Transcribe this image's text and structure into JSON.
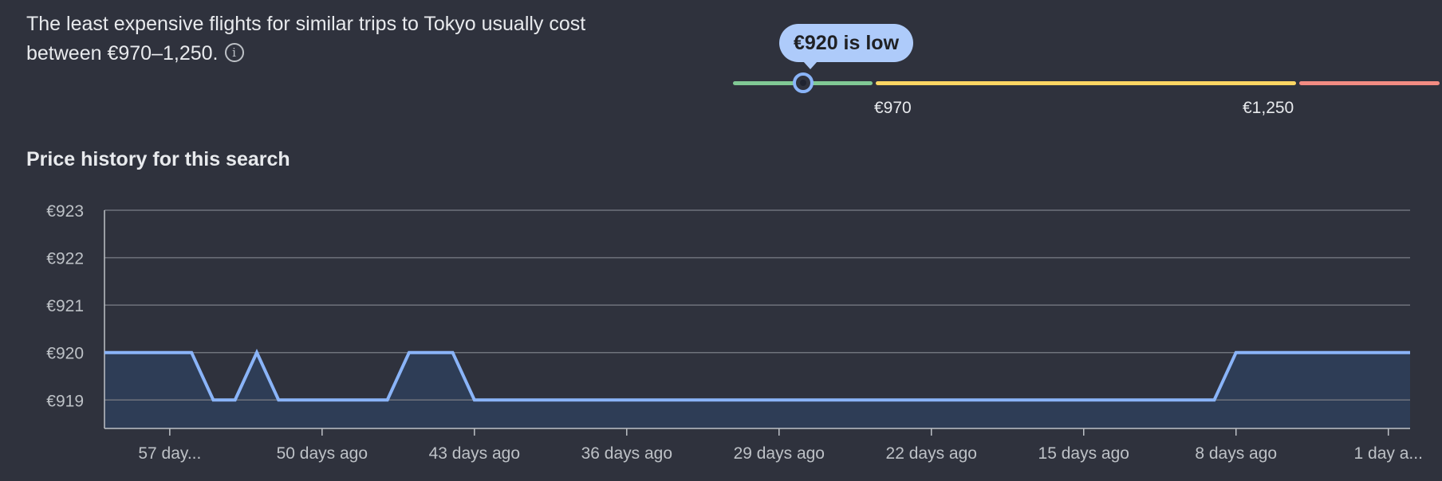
{
  "summary": {
    "text": "The least expensive flights for similar trips to Tokyo usually cost between €970–1,250.",
    "info_icon": "info-icon"
  },
  "price_range": {
    "bubble": "€920 is low",
    "low_threshold_label": "€970",
    "high_threshold_label": "€1,250",
    "colors": {
      "low": "#81c995",
      "typical": "#fdd663",
      "high": "#f28b82",
      "marker": "#8ab4f8"
    }
  },
  "history": {
    "title": "Price history for this search"
  },
  "chart_data": {
    "type": "area",
    "title": "",
    "xlabel": "",
    "ylabel": "",
    "ylim": [
      918.4,
      923
    ],
    "y_ticks": [
      923,
      922,
      921,
      920,
      919
    ],
    "y_tick_labels": [
      "€923",
      "€922",
      "€921",
      "€920",
      "€919"
    ],
    "x_ticks": [
      57,
      50,
      43,
      36,
      29,
      22,
      15,
      8,
      1
    ],
    "x_tick_labels": [
      "57 day...",
      "50 days ago",
      "43 days ago",
      "36 days ago",
      "29 days ago",
      "22 days ago",
      "15 days ago",
      "8 days ago",
      "1 day a..."
    ],
    "xlim": [
      60,
      0
    ],
    "grid": true,
    "line_color": "#8ab4f8",
    "fill_color": "#2e3d56",
    "series": [
      {
        "x": [
          60,
          56,
          55,
          54,
          53,
          52,
          51,
          47,
          46,
          45,
          44,
          43,
          9,
          8,
          0
        ],
        "values": [
          920,
          920,
          919,
          919,
          920,
          919,
          919,
          919,
          920,
          920,
          920,
          919,
          919,
          920,
          920
        ]
      }
    ]
  }
}
